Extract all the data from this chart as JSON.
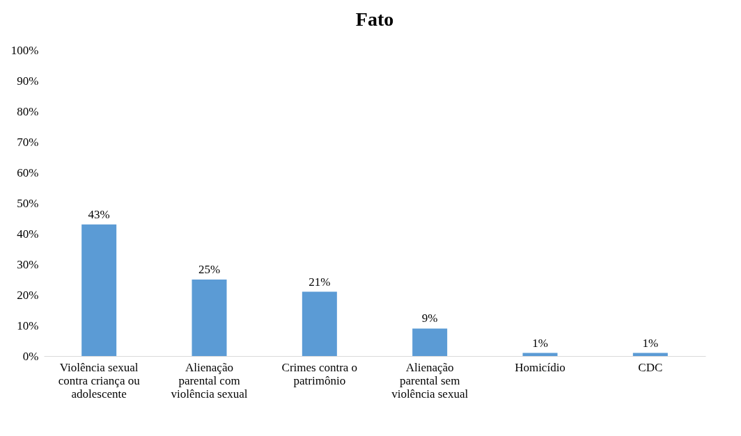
{
  "chart_data": {
    "type": "bar",
    "title": "Fato",
    "categories": [
      "Violência sexual contra criança ou adolescente",
      "Alienação parental com violência sexual",
      "Crimes contra o patrimônio",
      "Alienação parental sem violência sexual",
      "Homicídio",
      "CDC"
    ],
    "values": [
      43,
      25,
      21,
      9,
      1,
      1
    ],
    "value_labels": [
      "43%",
      "25%",
      "21%",
      "9%",
      "1%",
      "1%"
    ],
    "color": "#5b9bd5",
    "ylim": [
      0,
      100
    ],
    "yticks": [
      {
        "value": 0,
        "label": "0%"
      },
      {
        "value": 10,
        "label": "10%"
      },
      {
        "value": 20,
        "label": "20%"
      },
      {
        "value": 30,
        "label": "30%"
      },
      {
        "value": 40,
        "label": "40%"
      },
      {
        "value": 50,
        "label": "50%"
      },
      {
        "value": 60,
        "label": "60%"
      },
      {
        "value": 70,
        "label": "70%"
      },
      {
        "value": 80,
        "label": "80%"
      },
      {
        "value": 90,
        "label": "90%"
      },
      {
        "value": 100,
        "label": "100%"
      }
    ],
    "grid": false
  }
}
